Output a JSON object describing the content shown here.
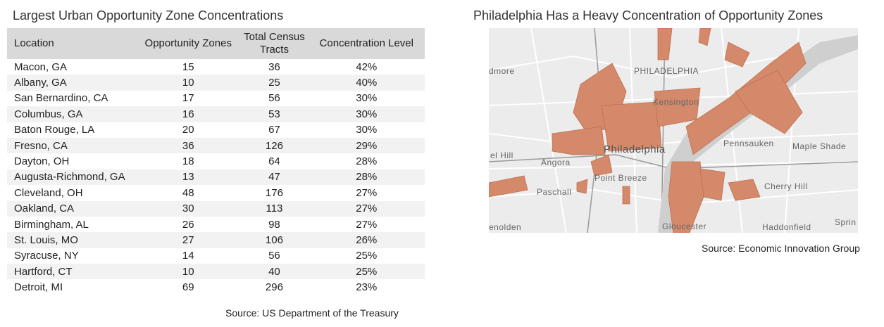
{
  "left": {
    "title": "Largest Urban Opportunity Zone Concentrations",
    "table": {
      "header": [
        "Location",
        "Opportunity Zones",
        "Total Census Tracts",
        "Concentration Level"
      ],
      "rows": [
        [
          "Macon, GA",
          "15",
          "36",
          "42%"
        ],
        [
          "Albany, GA",
          "10",
          "25",
          "40%"
        ],
        [
          "San Bernardino, CA",
          "17",
          "56",
          "30%"
        ],
        [
          "Columbus, GA",
          "16",
          "53",
          "30%"
        ],
        [
          "Baton Rouge, LA",
          "20",
          "67",
          "30%"
        ],
        [
          "Fresno, CA",
          "36",
          "126",
          "29%"
        ],
        [
          "Dayton, OH",
          "18",
          "64",
          "28%"
        ],
        [
          "Augusta-Richmond, GA",
          "13",
          "47",
          "28%"
        ],
        [
          "Cleveland, OH",
          "48",
          "176",
          "27%"
        ],
        [
          "Oakland, CA",
          "30",
          "113",
          "27%"
        ],
        [
          "Birmingham, AL",
          "26",
          "98",
          "27%"
        ],
        [
          "St. Louis, MO",
          "27",
          "106",
          "26%"
        ],
        [
          "Syracuse, NY",
          "14",
          "56",
          "25%"
        ],
        [
          "Hartford, CT",
          "10",
          "40",
          "25%"
        ],
        [
          "Detroit, MI",
          "69",
          "296",
          "23%"
        ]
      ]
    },
    "source": "Source: US Department of the Treasury"
  },
  "right": {
    "title": "Philadelphia Has a Heavy Concentration of Opportunity Zones",
    "map": {
      "labels": [
        "dmore",
        "PHILADELPHIA",
        "Kensington",
        "Philadelphia",
        "Pennsauken",
        "Maple Shade",
        "el Hill",
        "Angora",
        "Point Breeze",
        "Paschall",
        "Cherry Hill",
        "enolden",
        "Gloucester",
        "Haddonfield",
        "Sprin"
      ]
    },
    "source": "Source: Economic Innovation Group"
  }
}
